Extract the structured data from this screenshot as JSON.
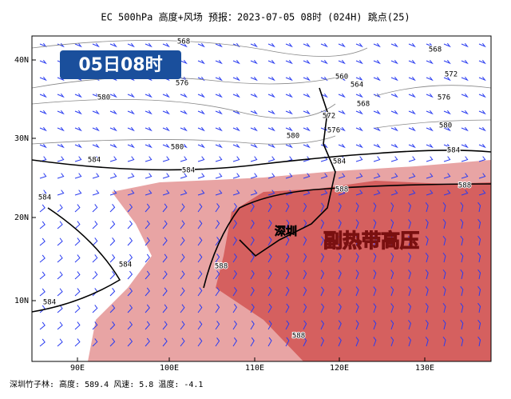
{
  "title": "EC 500hPa 高度+风场   预报：2023-07-05 08时 (024H) 跳点(25)",
  "badge": "05日08时",
  "lat_labels": [
    "40N",
    "30N",
    "20N",
    "10N"
  ],
  "lon_labels": [
    "90E",
    "100E",
    "110E",
    "120E",
    "130E"
  ],
  "contour_labels": [
    "568",
    "576",
    "580",
    "580",
    "584",
    "584",
    "584",
    "584",
    "584",
    "588",
    "588",
    "560",
    "564",
    "568",
    "572",
    "576",
    "580",
    "584",
    "588",
    "588",
    "584",
    "580",
    "576",
    "572",
    "568"
  ],
  "city": "深圳",
  "system": "副热带高压",
  "footer": "深圳竹子林: 高度: 589.4    风速: 5.8    温度: -4.1"
}
